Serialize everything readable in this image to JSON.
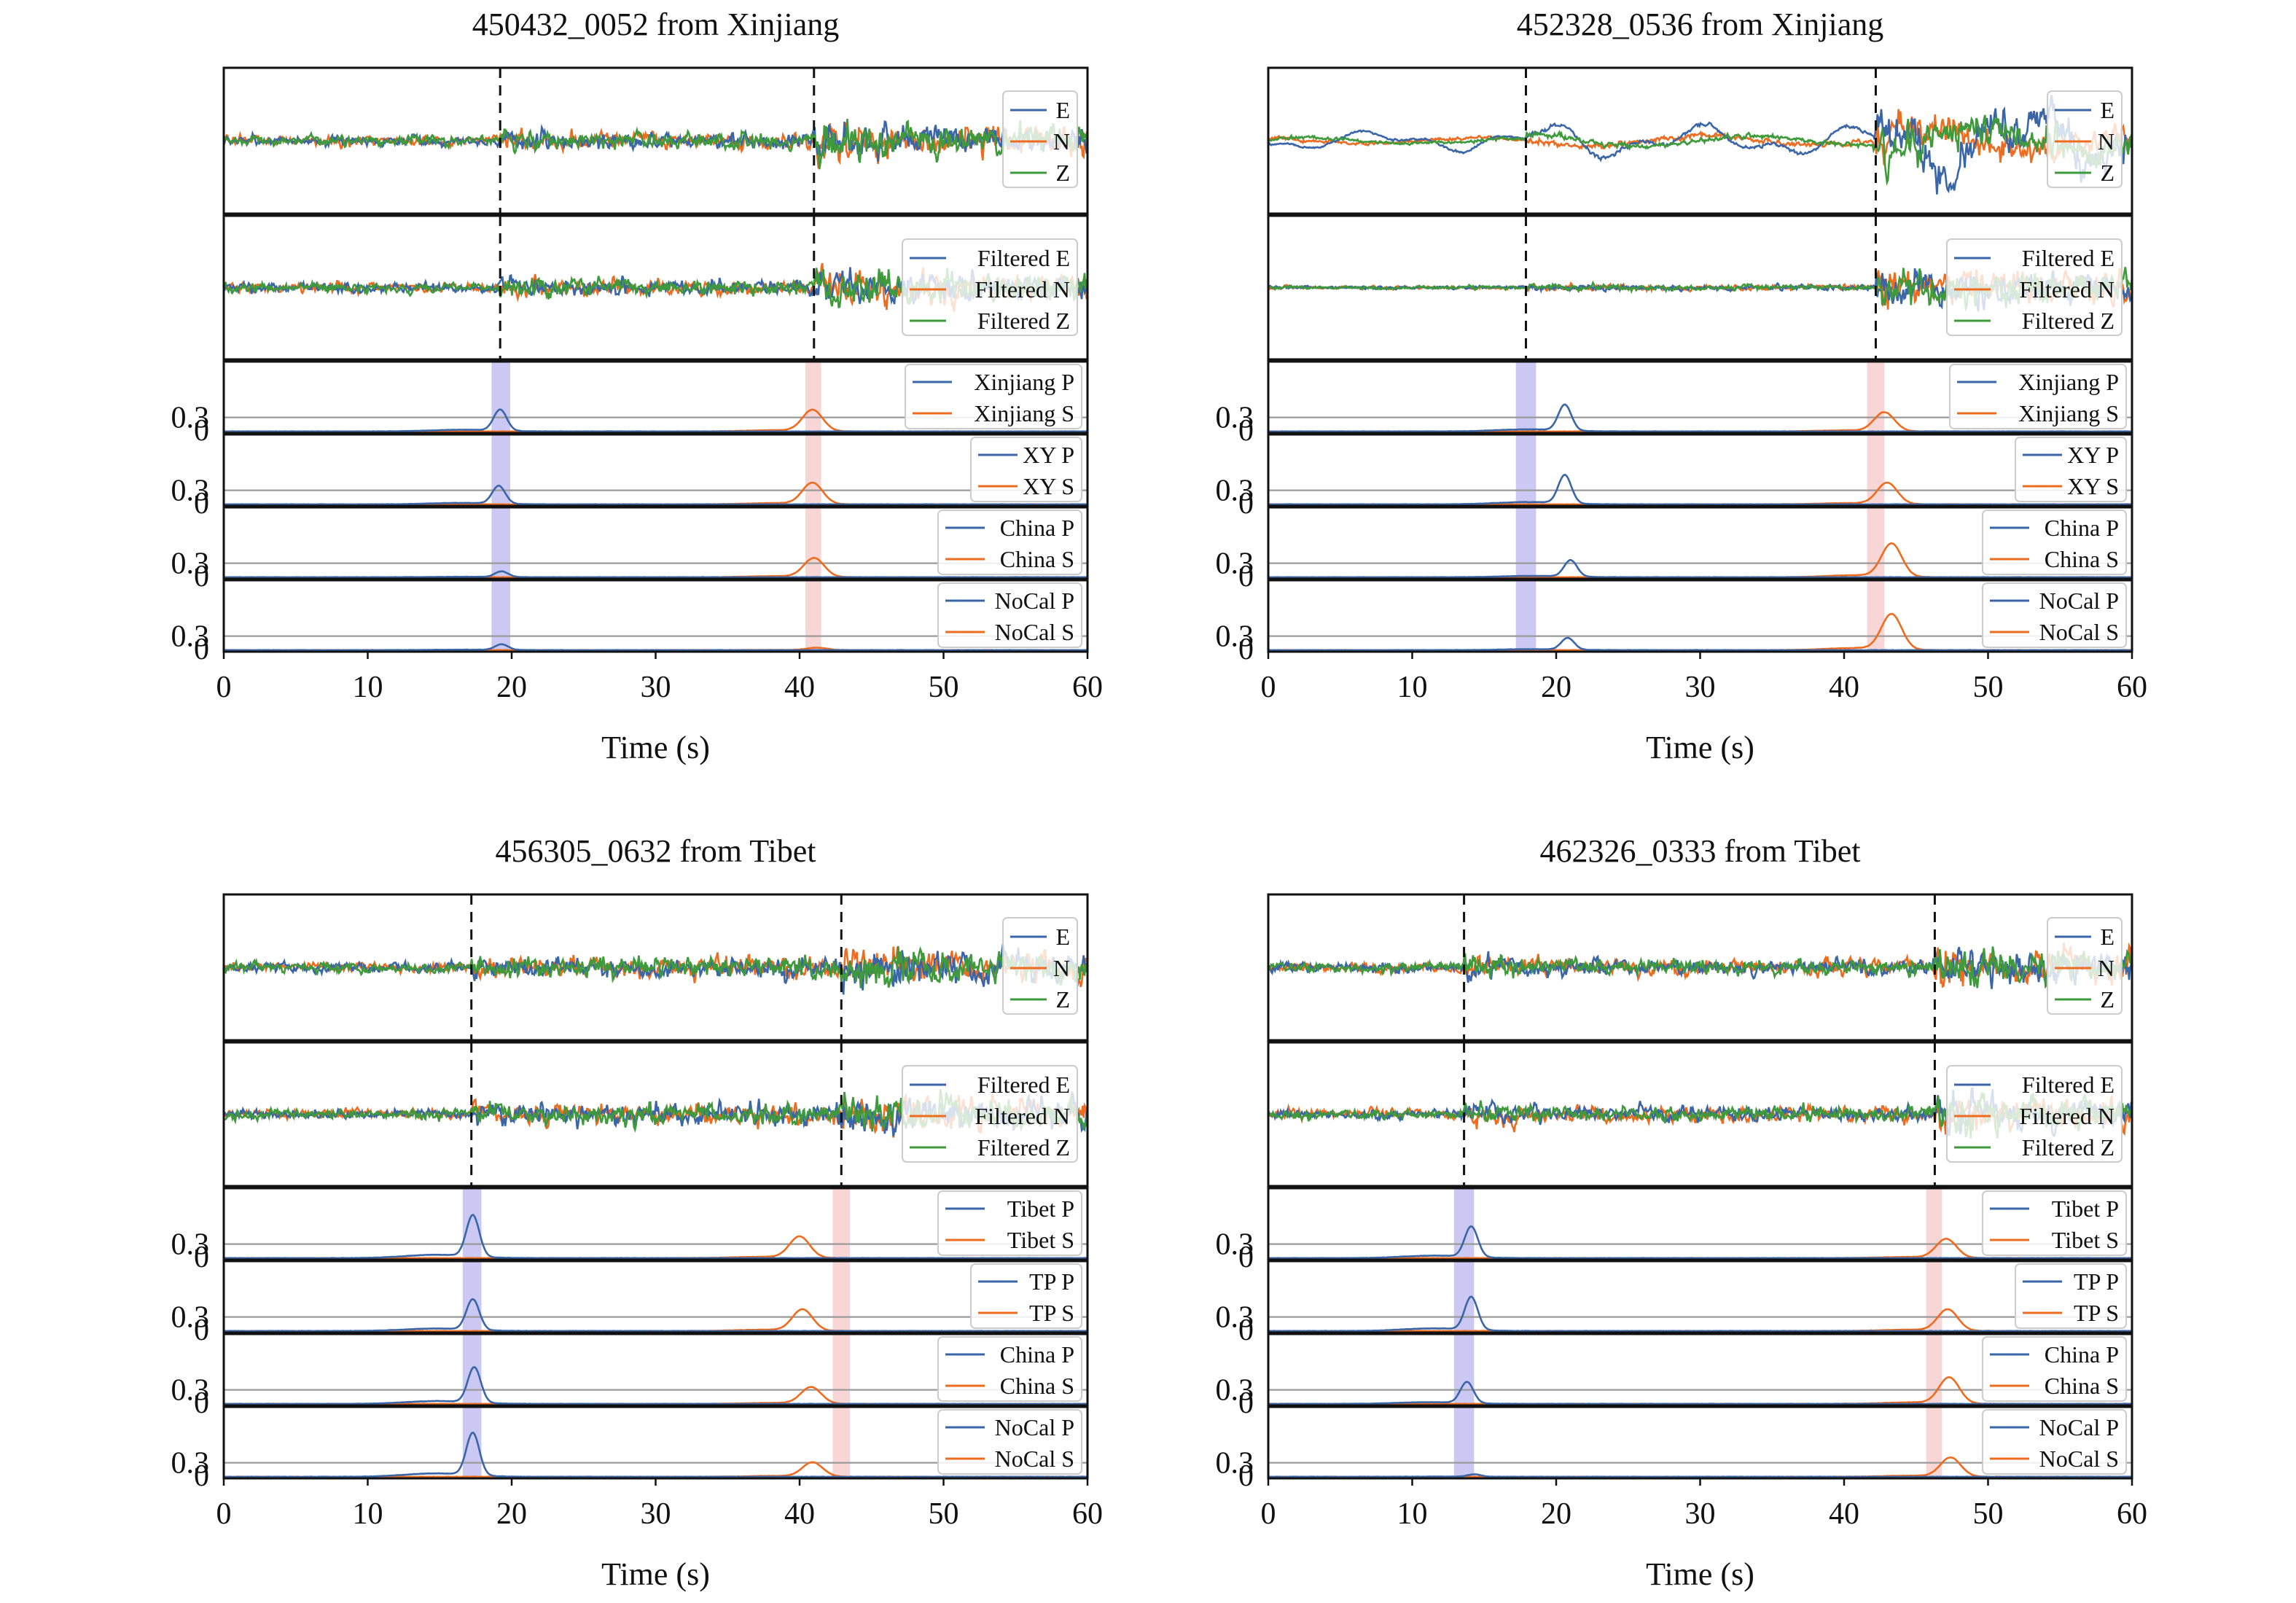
{
  "colors": {
    "E": "#3a66a8",
    "N": "#ee6c1f",
    "Z": "#3e9a3a",
    "P_band": "#b9b7ef",
    "S_band": "#f6c4c4",
    "grid": "#9a9a9a"
  },
  "chart_data": [
    {
      "type": "line",
      "title": "450432_0052 from Xinjiang",
      "xlabel": "Time (s)",
      "xlim": [
        0,
        60
      ],
      "xticks": [
        0,
        10,
        20,
        30,
        40,
        50,
        60
      ],
      "p_arrival": 19.2,
      "s_arrival": 41.0,
      "wave_legend": [
        "E",
        "N",
        "Z"
      ],
      "filtered_legend": [
        "Filtered E",
        "Filtered N",
        "Filtered Z"
      ],
      "prob_yticks": [
        "0.3",
        "0"
      ],
      "threshold": 0.3,
      "p_band": [
        18.6,
        19.9
      ],
      "s_band": [
        40.4,
        41.5
      ],
      "models": [
        {
          "p_label": "Xinjiang P",
          "s_label": "Xinjiang S",
          "p_peak": 0.45,
          "s_peak": 0.45,
          "p_t": 19.2,
          "s_t": 40.9
        },
        {
          "p_label": "XY P",
          "s_label": "XY S",
          "p_peak": 0.38,
          "s_peak": 0.45,
          "p_t": 19.1,
          "s_t": 40.9
        },
        {
          "p_label": "China P",
          "s_label": "China S",
          "p_peak": 0.12,
          "s_peak": 0.4,
          "p_t": 19.3,
          "s_t": 41.0
        },
        {
          "p_label": "NoCal P",
          "s_label": "NoCal S",
          "p_peak": 0.12,
          "s_peak": 0.05,
          "p_t": 19.3,
          "s_t": 41.2
        }
      ]
    },
    {
      "type": "line",
      "title": "452328_0536 from Xinjiang",
      "xlabel": "Time (s)",
      "xlim": [
        0,
        60
      ],
      "xticks": [
        0,
        10,
        20,
        30,
        40,
        50,
        60
      ],
      "p_arrival": 17.9,
      "s_arrival": 42.2,
      "wave_legend": [
        "E",
        "N",
        "Z"
      ],
      "filtered_legend": [
        "Filtered E",
        "Filtered N",
        "Filtered Z"
      ],
      "prob_yticks": [
        "0.3",
        "0"
      ],
      "threshold": 0.3,
      "p_band": [
        17.2,
        18.6
      ],
      "s_band": [
        41.6,
        42.8
      ],
      "models": [
        {
          "p_label": "Xinjiang P",
          "s_label": "Xinjiang S",
          "p_peak": 0.55,
          "s_peak": 0.4,
          "p_t": 20.6,
          "s_t": 42.8
        },
        {
          "p_label": "XY P",
          "s_label": "XY S",
          "p_peak": 0.6,
          "s_peak": 0.45,
          "p_t": 20.6,
          "s_t": 43.0
        },
        {
          "p_label": "China P",
          "s_label": "China S",
          "p_peak": 0.35,
          "s_peak": 0.7,
          "p_t": 21.0,
          "s_t": 43.3
        },
        {
          "p_label": "NoCal P",
          "s_label": "NoCal S",
          "p_peak": 0.25,
          "s_peak": 0.75,
          "p_t": 20.8,
          "s_t": 43.3
        }
      ]
    },
    {
      "type": "line",
      "title": "456305_0632 from Tibet",
      "xlabel": "Time (s)",
      "xlim": [
        0,
        60
      ],
      "xticks": [
        0,
        10,
        20,
        30,
        40,
        50,
        60
      ],
      "p_arrival": 17.2,
      "s_arrival": 42.9,
      "wave_legend": [
        "E",
        "N",
        "Z"
      ],
      "filtered_legend": [
        "Filtered E",
        "Filtered N",
        "Filtered Z"
      ],
      "prob_yticks": [
        "0.3",
        "0"
      ],
      "threshold": 0.3,
      "p_band": [
        16.6,
        17.9
      ],
      "s_band": [
        42.3,
        43.5
      ],
      "models": [
        {
          "p_label": "Tibet P",
          "s_label": "Tibet S",
          "p_peak": 0.88,
          "s_peak": 0.45,
          "p_t": 17.3,
          "s_t": 40.0
        },
        {
          "p_label": "TP P",
          "s_label": "TP S",
          "p_peak": 0.65,
          "s_peak": 0.45,
          "p_t": 17.3,
          "s_t": 40.2
        },
        {
          "p_label": "China P",
          "s_label": "China S",
          "p_peak": 0.75,
          "s_peak": 0.35,
          "p_t": 17.4,
          "s_t": 40.8
        },
        {
          "p_label": "NoCal P",
          "s_label": "NoCal S",
          "p_peak": 0.9,
          "s_peak": 0.3,
          "p_t": 17.3,
          "s_t": 40.9
        }
      ]
    },
    {
      "type": "line",
      "title": "462326_0333 from Tibet",
      "xlabel": "Time (s)",
      "xlim": [
        0,
        60
      ],
      "xticks": [
        0,
        10,
        20,
        30,
        40,
        50,
        60
      ],
      "p_arrival": 13.6,
      "s_arrival": 46.3,
      "wave_legend": [
        "E",
        "N",
        "Z"
      ],
      "filtered_legend": [
        "Filtered E",
        "Filtered N",
        "Filtered Z"
      ],
      "prob_yticks": [
        "0.3",
        "0"
      ],
      "threshold": 0.3,
      "p_band": [
        12.9,
        14.3
      ],
      "s_band": [
        45.7,
        46.8
      ],
      "models": [
        {
          "p_label": "Tibet P",
          "s_label": "Tibet S",
          "p_peak": 0.65,
          "s_peak": 0.4,
          "p_t": 14.1,
          "s_t": 47.1
        },
        {
          "p_label": "TP P",
          "s_label": "TP S",
          "p_peak": 0.7,
          "s_peak": 0.45,
          "p_t": 14.1,
          "s_t": 47.2
        },
        {
          "p_label": "China P",
          "s_label": "China S",
          "p_peak": 0.45,
          "s_peak": 0.55,
          "p_t": 13.8,
          "s_t": 47.3
        },
        {
          "p_label": "NoCal P",
          "s_label": "NoCal S",
          "p_peak": 0.05,
          "s_peak": 0.4,
          "p_t": 14.3,
          "s_t": 47.4
        }
      ]
    }
  ]
}
